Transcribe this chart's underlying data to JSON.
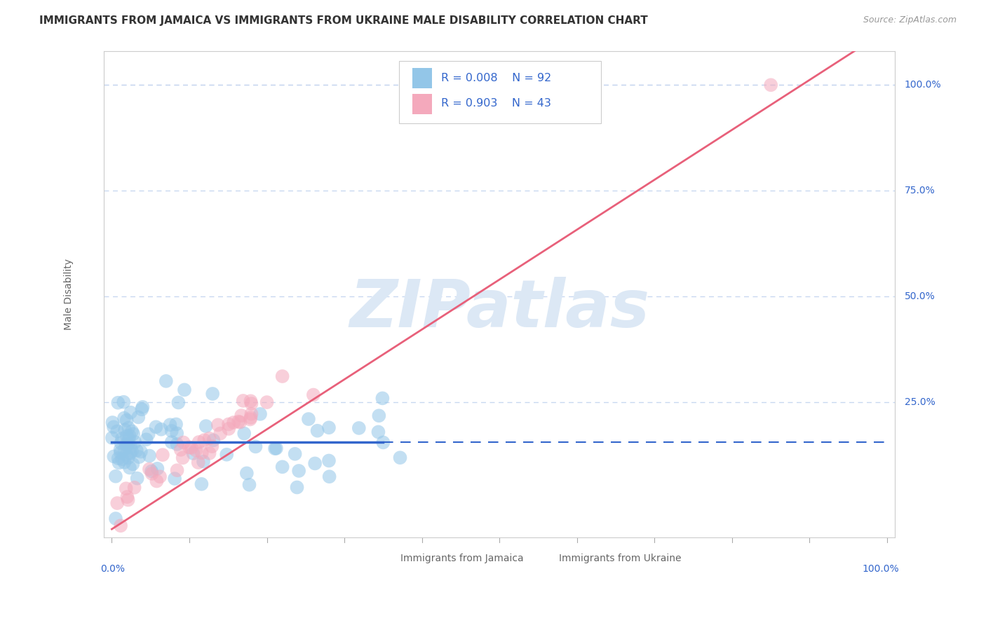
{
  "title": "IMMIGRANTS FROM JAMAICA VS IMMIGRANTS FROM UKRAINE MALE DISABILITY CORRELATION CHART",
  "source": "Source: ZipAtlas.com",
  "ylabel": "Male Disability",
  "color_jamaica": "#93C6E8",
  "color_ukraine": "#F4A9BC",
  "line_color_jamaica": "#3366CC",
  "line_color_ukraine": "#E8607A",
  "background_color": "#FFFFFF",
  "watermark": "ZIPatlas",
  "watermark_color": "#DCE8F5",
  "grid_color": "#C8D8F0",
  "r_jamaica": 0.008,
  "r_ukraine": 0.903,
  "n_jamaica": 92,
  "n_ukraine": 43,
  "title_fontsize": 11,
  "source_fontsize": 9,
  "legend_r1": "R = 0.008",
  "legend_n1": "N = 92",
  "legend_r2": "R = 0.903",
  "legend_n2": "N = 43",
  "legend_color": "#3366CC",
  "bottom_label_jamaica": "Immigrants from Jamaica",
  "bottom_label_ukraine": "Immigrants from Ukraine"
}
